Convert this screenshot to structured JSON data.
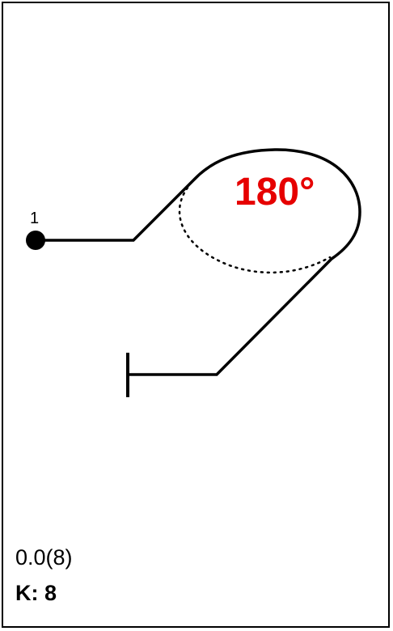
{
  "diagram": {
    "start_point_label": "1",
    "angle_label": "180°",
    "angle_color": "#e60000",
    "line_color": "#000000",
    "start_marker": "filled-circle",
    "end_marker": "perpendicular-bar"
  },
  "footer": {
    "score": "0.0(8)",
    "k_label": "K:",
    "k_value": "8"
  }
}
